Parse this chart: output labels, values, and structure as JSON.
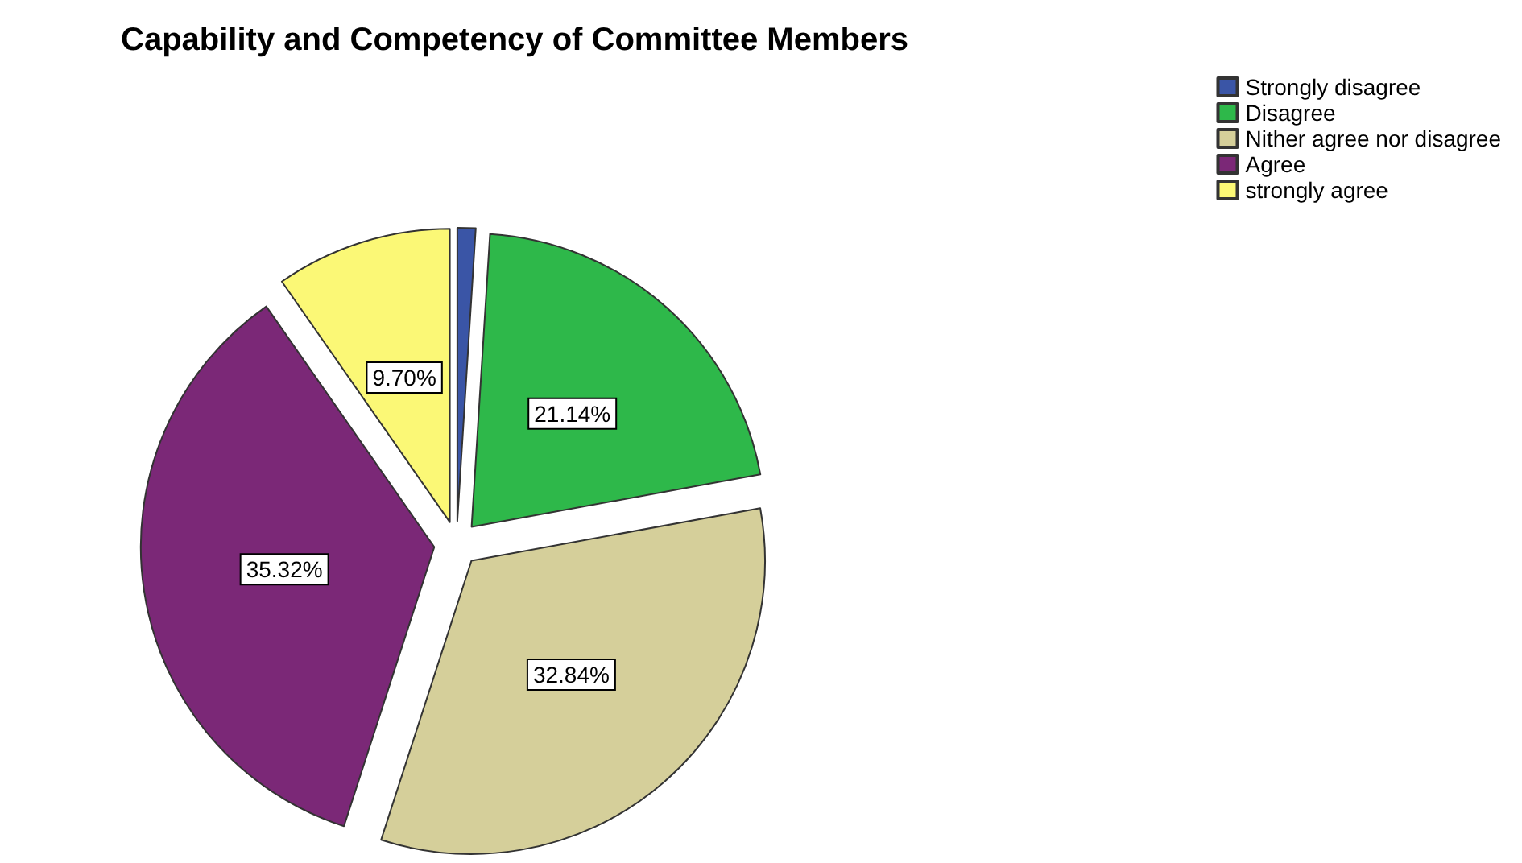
{
  "chart_data": {
    "type": "pie",
    "title": "Capability and Competency of Committee Members",
    "categories": [
      "Strongly disagree",
      "Disagree",
      "Nither agree nor disagree",
      "Agree",
      "strongly agree"
    ],
    "values": [
      1.0,
      21.14,
      32.84,
      35.32,
      9.7
    ],
    "colors": [
      "#3a55a6",
      "#2eb84a",
      "#d5cf9a",
      "#7b2877",
      "#fbf876"
    ],
    "value_labels": [
      null,
      "21.14%",
      "32.84%",
      "35.32%",
      "9.70%"
    ],
    "legend": "top right"
  }
}
